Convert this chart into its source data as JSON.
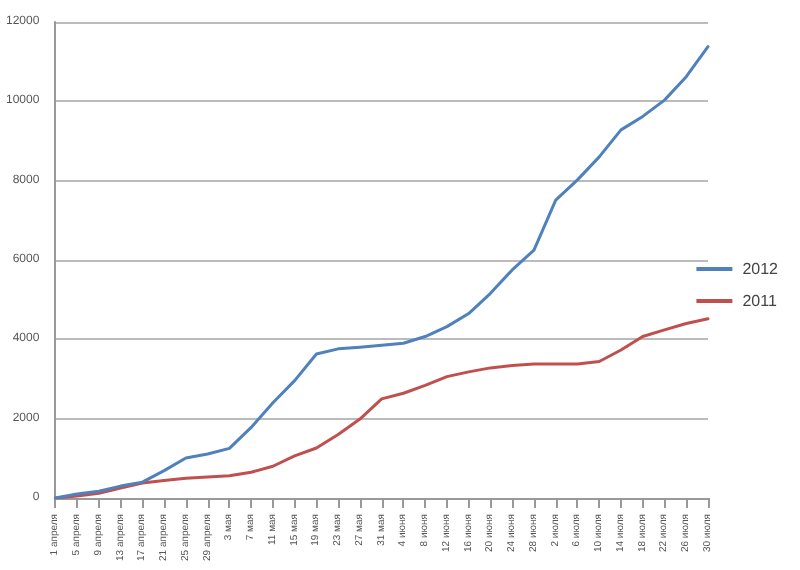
{
  "chart_data": {
    "type": "line",
    "categories": [
      "1 апреля",
      "5 апреля",
      "9 апреля",
      "13 апреля",
      "17 апреля",
      "21 апреля",
      "25 апреля",
      "29 апреля",
      "3 мая",
      "7 мая",
      "11 мая",
      "15 мая",
      "19 мая",
      "23 мая",
      "27 мая",
      "31 мая",
      "4 июня",
      "8 июня",
      "12 июня",
      "16 июня",
      "20 июня",
      "24 июня",
      "28 июня",
      "2 июля",
      "6 июля",
      "10 июля",
      "14 июля",
      "18 июля",
      "22 июля",
      "26 июля",
      "30 июля"
    ],
    "series": [
      {
        "name": "2012",
        "color": "#4f81bd",
        "values": [
          0,
          100,
          170,
          300,
          400,
          690,
          1010,
          1110,
          1250,
          1780,
          2400,
          2960,
          3630,
          3760,
          3800,
          3850,
          3900,
          4070,
          4320,
          4650,
          5160,
          5750,
          6250,
          7510,
          8020,
          8600,
          9280,
          9620,
          10030,
          10620,
          11380
        ]
      },
      {
        "name": "2011",
        "color": "#c0504d",
        "values": [
          0,
          50,
          120,
          250,
          380,
          440,
          500,
          530,
          560,
          650,
          800,
          1060,
          1260,
          1600,
          1990,
          2500,
          2640,
          2840,
          3060,
          3180,
          3280,
          3340,
          3380,
          3380,
          3380,
          3440,
          3730,
          4070,
          4240,
          4400,
          4520
        ]
      }
    ],
    "ylim": [
      0,
      12000
    ],
    "yticks": [
      0,
      2000,
      4000,
      6000,
      8000,
      10000,
      12000
    ],
    "grid": "y",
    "legend": "right",
    "marker": "none",
    "line_style": "solid"
  }
}
